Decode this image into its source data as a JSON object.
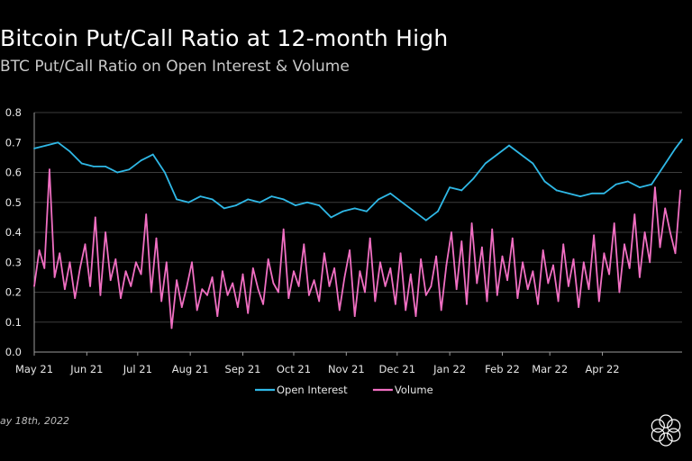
{
  "chart_data": {
    "type": "line",
    "title": "Bitcoin Put/Call Ratio at 12-month High",
    "subtitle": "BTC Put/Call Ratio on Open Interest & Volume",
    "xlabel": "",
    "ylabel": "",
    "ylim": [
      0.0,
      0.8
    ],
    "yticks": [
      "0.0",
      "0.1",
      "0.2",
      "0.3",
      "0.4",
      "0.5",
      "0.6",
      "0.7",
      "0.8"
    ],
    "xticks": [
      "May 21",
      "Jun 21",
      "Jul 21",
      "Aug 21",
      "Sep 21",
      "Oct 21",
      "Nov 21",
      "Dec 21",
      "Jan 22",
      "Feb 22",
      "Mar 22",
      "Apr 22"
    ],
    "grid": true,
    "legend": "bottom-center",
    "series": [
      {
        "name": "Open Interest",
        "color": "#2fb8e6",
        "x": [
          "2021-05-01",
          "2021-05-08",
          "2021-05-15",
          "2021-05-22",
          "2021-05-29",
          "2021-06-05",
          "2021-06-12",
          "2021-06-19",
          "2021-06-26",
          "2021-07-03",
          "2021-07-10",
          "2021-07-17",
          "2021-07-24",
          "2021-07-31",
          "2021-08-07",
          "2021-08-14",
          "2021-08-21",
          "2021-08-28",
          "2021-09-04",
          "2021-09-11",
          "2021-09-18",
          "2021-09-25",
          "2021-10-02",
          "2021-10-09",
          "2021-10-16",
          "2021-10-23",
          "2021-10-30",
          "2021-11-06",
          "2021-11-13",
          "2021-11-20",
          "2021-11-27",
          "2021-12-04",
          "2021-12-11",
          "2021-12-18",
          "2021-12-25",
          "2022-01-01",
          "2022-01-08",
          "2022-01-15",
          "2022-01-22",
          "2022-01-29",
          "2022-02-05",
          "2022-02-12",
          "2022-02-19",
          "2022-02-26",
          "2022-03-05",
          "2022-03-12",
          "2022-03-19",
          "2022-03-26",
          "2022-04-02",
          "2022-04-09",
          "2022-04-16",
          "2022-04-23",
          "2022-04-30",
          "2022-05-07",
          "2022-05-14",
          "2022-05-18"
        ],
        "values": [
          0.68,
          0.69,
          0.7,
          0.67,
          0.63,
          0.62,
          0.62,
          0.6,
          0.61,
          0.64,
          0.66,
          0.6,
          0.51,
          0.5,
          0.52,
          0.51,
          0.48,
          0.49,
          0.51,
          0.5,
          0.52,
          0.51,
          0.49,
          0.5,
          0.49,
          0.45,
          0.47,
          0.48,
          0.47,
          0.51,
          0.53,
          0.5,
          0.47,
          0.44,
          0.47,
          0.55,
          0.54,
          0.58,
          0.63,
          0.66,
          0.69,
          0.66,
          0.63,
          0.57,
          0.54,
          0.53,
          0.52,
          0.53,
          0.53,
          0.56,
          0.57,
          0.55,
          0.56,
          0.62,
          0.68,
          0.71
        ]
      },
      {
        "name": "Volume",
        "color": "#f06fc2",
        "x": [
          "2021-05-01",
          "2021-05-04",
          "2021-05-07",
          "2021-05-10",
          "2021-05-13",
          "2021-05-16",
          "2021-05-19",
          "2021-05-22",
          "2021-05-25",
          "2021-05-28",
          "2021-05-31",
          "2021-06-03",
          "2021-06-06",
          "2021-06-09",
          "2021-06-12",
          "2021-06-15",
          "2021-06-18",
          "2021-06-21",
          "2021-06-24",
          "2021-06-27",
          "2021-06-30",
          "2021-07-03",
          "2021-07-06",
          "2021-07-09",
          "2021-07-12",
          "2021-07-15",
          "2021-07-18",
          "2021-07-21",
          "2021-07-24",
          "2021-07-27",
          "2021-07-30",
          "2021-08-02",
          "2021-08-05",
          "2021-08-08",
          "2021-08-11",
          "2021-08-14",
          "2021-08-17",
          "2021-08-20",
          "2021-08-23",
          "2021-08-26",
          "2021-08-29",
          "2021-09-01",
          "2021-09-04",
          "2021-09-07",
          "2021-09-10",
          "2021-09-13",
          "2021-09-16",
          "2021-09-19",
          "2021-09-22",
          "2021-09-25",
          "2021-09-28",
          "2021-10-01",
          "2021-10-04",
          "2021-10-07",
          "2021-10-10",
          "2021-10-13",
          "2021-10-16",
          "2021-10-19",
          "2021-10-22",
          "2021-10-25",
          "2021-10-28",
          "2021-10-31",
          "2021-11-03",
          "2021-11-06",
          "2021-11-09",
          "2021-11-12",
          "2021-11-15",
          "2021-11-18",
          "2021-11-21",
          "2021-11-24",
          "2021-11-27",
          "2021-11-30",
          "2021-12-03",
          "2021-12-06",
          "2021-12-09",
          "2021-12-12",
          "2021-12-15",
          "2021-12-18",
          "2021-12-21",
          "2021-12-24",
          "2021-12-27",
          "2021-12-30",
          "2022-01-02",
          "2022-01-05",
          "2022-01-08",
          "2022-01-11",
          "2022-01-14",
          "2022-01-17",
          "2022-01-20",
          "2022-01-23",
          "2022-01-26",
          "2022-01-29",
          "2022-02-01",
          "2022-02-04",
          "2022-02-07",
          "2022-02-10",
          "2022-02-13",
          "2022-02-16",
          "2022-02-19",
          "2022-02-22",
          "2022-02-25",
          "2022-02-28",
          "2022-03-03",
          "2022-03-06",
          "2022-03-09",
          "2022-03-12",
          "2022-03-15",
          "2022-03-18",
          "2022-03-21",
          "2022-03-24",
          "2022-03-27",
          "2022-03-30",
          "2022-04-02",
          "2022-04-05",
          "2022-04-08",
          "2022-04-11",
          "2022-04-14",
          "2022-04-17",
          "2022-04-20",
          "2022-04-23",
          "2022-04-26",
          "2022-04-29",
          "2022-05-02",
          "2022-05-05",
          "2022-05-08",
          "2022-05-11",
          "2022-05-14",
          "2022-05-17"
        ],
        "values": [
          0.22,
          0.34,
          0.28,
          0.61,
          0.25,
          0.33,
          0.21,
          0.3,
          0.18,
          0.28,
          0.36,
          0.22,
          0.45,
          0.19,
          0.4,
          0.24,
          0.31,
          0.18,
          0.27,
          0.22,
          0.3,
          0.26,
          0.46,
          0.2,
          0.38,
          0.17,
          0.3,
          0.08,
          0.24,
          0.15,
          0.22,
          0.3,
          0.14,
          0.21,
          0.19,
          0.25,
          0.12,
          0.27,
          0.19,
          0.23,
          0.15,
          0.26,
          0.13,
          0.28,
          0.21,
          0.16,
          0.31,
          0.23,
          0.2,
          0.41,
          0.18,
          0.27,
          0.22,
          0.36,
          0.19,
          0.24,
          0.17,
          0.33,
          0.22,
          0.28,
          0.14,
          0.25,
          0.34,
          0.12,
          0.27,
          0.2,
          0.38,
          0.17,
          0.3,
          0.22,
          0.28,
          0.16,
          0.33,
          0.14,
          0.26,
          0.12,
          0.31,
          0.19,
          0.22,
          0.32,
          0.14,
          0.29,
          0.4,
          0.21,
          0.37,
          0.16,
          0.43,
          0.23,
          0.35,
          0.17,
          0.41,
          0.19,
          0.32,
          0.24,
          0.38,
          0.18,
          0.3,
          0.21,
          0.27,
          0.16,
          0.34,
          0.23,
          0.29,
          0.17,
          0.36,
          0.22,
          0.31,
          0.15,
          0.3,
          0.21,
          0.39,
          0.17,
          0.33,
          0.26,
          0.43,
          0.2,
          0.36,
          0.28,
          0.46,
          0.25,
          0.4,
          0.3,
          0.55,
          0.35,
          0.48,
          0.4,
          0.33,
          0.54
        ]
      }
    ]
  },
  "footnote": "ay 18th, 2022"
}
